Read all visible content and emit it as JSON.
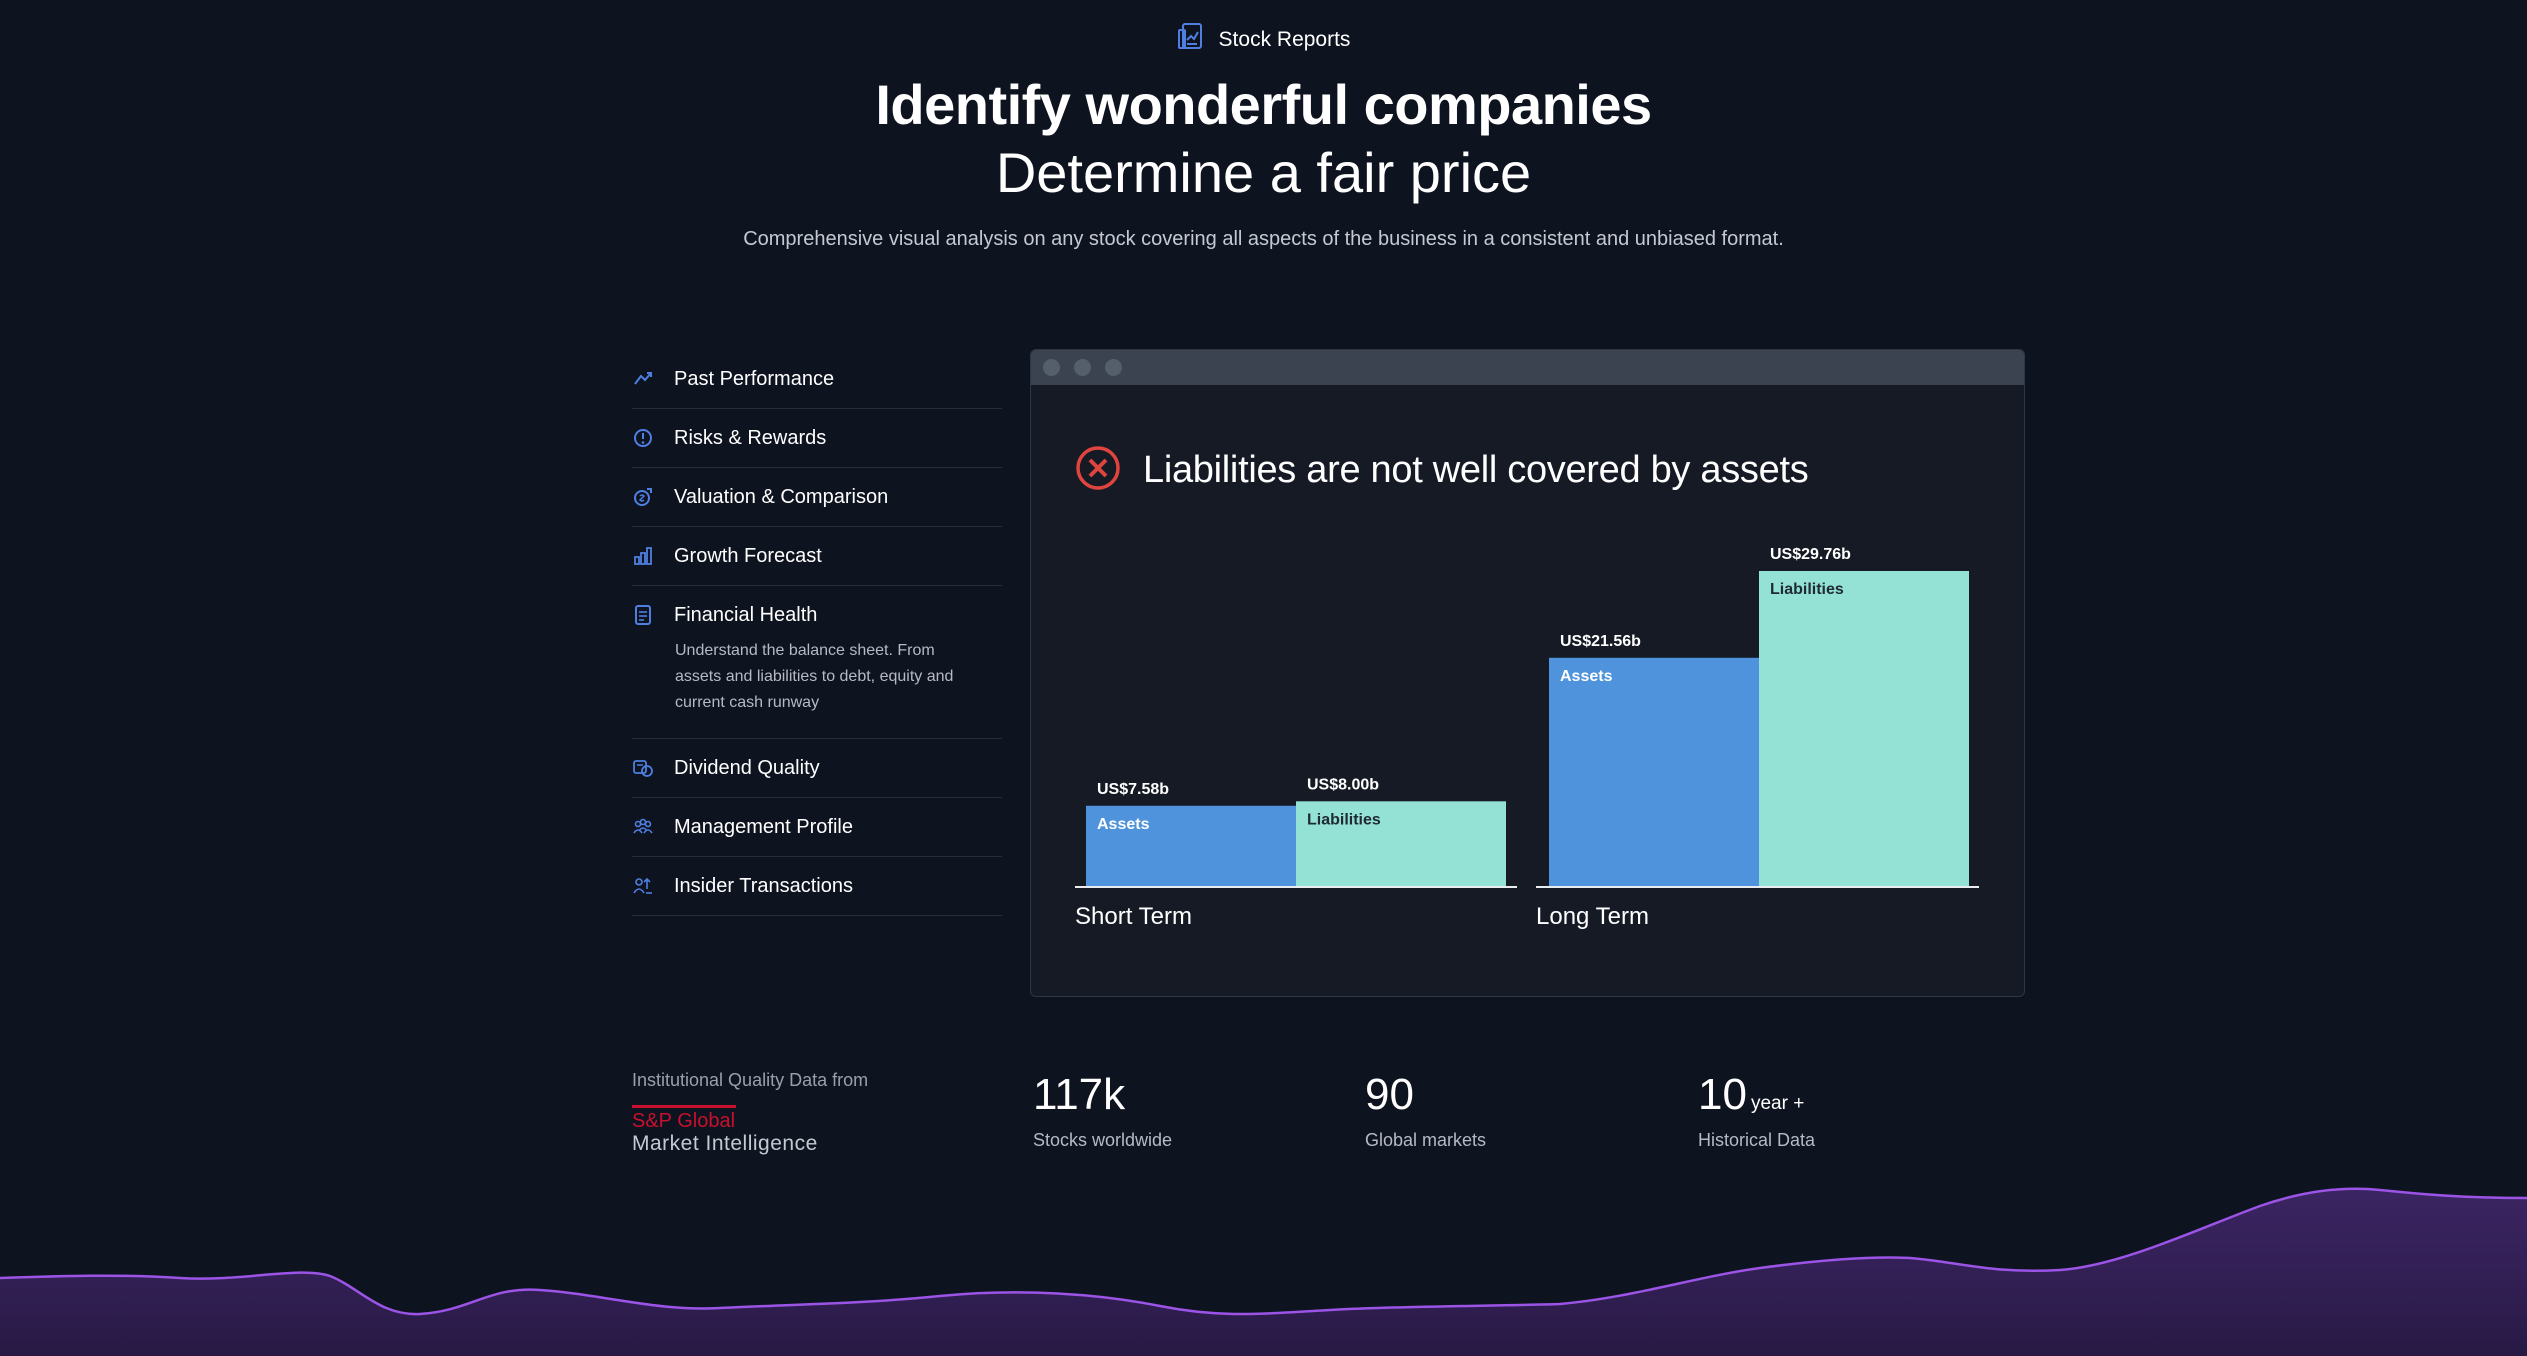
{
  "header": {
    "badge_label": "Stock Reports",
    "badge_icon": "report-icon",
    "headline": "Identify wonderful companies",
    "subheadline": "Determine a fair price",
    "description": "Comprehensive visual analysis on any stock covering all aspects of the business in a consistent and unbiased format."
  },
  "menu": {
    "items": [
      {
        "label": "Past Performance",
        "icon": "performance-icon"
      },
      {
        "label": "Risks & Rewards",
        "icon": "risk-icon"
      },
      {
        "label": "Valuation & Comparison",
        "icon": "valuation-icon"
      },
      {
        "label": "Growth Forecast",
        "icon": "growth-icon"
      },
      {
        "label": "Financial Health",
        "icon": "document-icon",
        "active": true,
        "description": "Understand the balance sheet. From assets and liabilities to debt, equity and current cash runway"
      },
      {
        "label": "Dividend Quality",
        "icon": "dividend-icon"
      },
      {
        "label": "Management Profile",
        "icon": "people-icon"
      },
      {
        "label": "Insider Transactions",
        "icon": "insider-icon"
      }
    ]
  },
  "panel": {
    "status_icon": "error-circle-icon",
    "status_color": "#e0443e",
    "title": "Liabilities are not well covered by assets"
  },
  "chart_data": {
    "type": "bar",
    "groups": [
      {
        "name": "Short Term",
        "bars": [
          {
            "label": "Assets",
            "value": 7.58,
            "value_label": "US$7.58b",
            "color": "#4e93dc"
          },
          {
            "label": "Liabilities",
            "value": 8.0,
            "value_label": "US$8.00b",
            "color": "#93e2d5"
          }
        ]
      },
      {
        "name": "Long Term",
        "bars": [
          {
            "label": "Assets",
            "value": 21.56,
            "value_label": "US$21.56b",
            "color": "#4e93dc"
          },
          {
            "label": "Liabilities",
            "value": 29.76,
            "value_label": "US$29.76b",
            "color": "#93e2d5"
          }
        ]
      }
    ],
    "units": "US$ billions",
    "ylim": [
      0,
      29.76
    ]
  },
  "footer": {
    "source_label": "Institutional Quality Data from",
    "logo_name": "S&P Global",
    "logo_sub": "Market Intelligence",
    "stats": [
      {
        "value": "117k",
        "unit": "",
        "label": "Stocks worldwide"
      },
      {
        "value": "90",
        "unit": "",
        "label": "Global markets"
      },
      {
        "value": "10",
        "unit": "year +",
        "label": "Historical Data"
      }
    ]
  },
  "colors": {
    "background": "#0e1320",
    "accent_blue": "#4e93dc",
    "accent_teal": "#93e2d5",
    "wave_purple": "#8b46d6",
    "sp_red": "#c8102e"
  }
}
